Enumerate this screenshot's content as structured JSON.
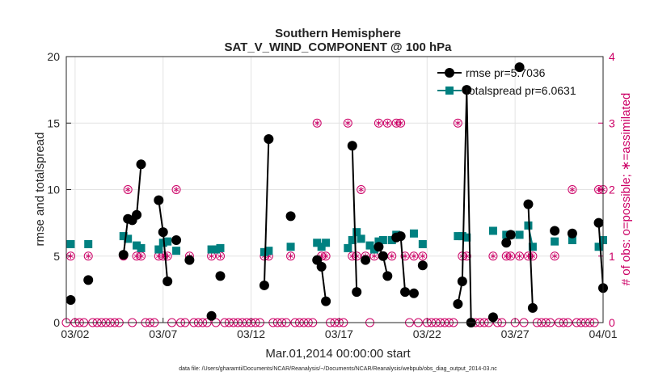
{
  "chart_data": {
    "type": "line",
    "title": "Southern Hemisphere",
    "subtitle": "SAT_V_WIND_COMPONENT @ 100 hPa",
    "xlabel": "Mar.01,2014 00:00:00 start",
    "ylabel": "rmse and totalspread",
    "y2label": "# of obs: o=possible; ∗=assimilated",
    "xlim": [
      0.5,
      31.0
    ],
    "ylim": [
      0,
      20
    ],
    "y2lim": [
      0,
      4
    ],
    "x_ticks": [
      1,
      6,
      11,
      16,
      21,
      26,
      31
    ],
    "x_tick_labels": [
      "03/02",
      "03/07",
      "03/12",
      "03/17",
      "03/22",
      "03/27",
      "04/01"
    ],
    "y_ticks": [
      0,
      5,
      10,
      15,
      20
    ],
    "y_tick_labels": [
      "0",
      "5",
      "10",
      "15",
      "20"
    ],
    "y2_ticks": [
      0,
      1,
      2,
      3,
      4
    ],
    "y2_tick_labels": [
      "0",
      "1",
      "2",
      "3",
      "4"
    ],
    "grid": true,
    "legend_position": "top-right",
    "footnote": "data file: /Users/gharamti/Documents/NCAR/Reanalysis/~/Documents/NCAR/Reanalysis/webpub/obs_diag_output_2014-03.nc",
    "series": [
      {
        "name": "rmse pr=5.7036",
        "color": "#000000",
        "marker": "circle",
        "axis": "left",
        "segments": [
          [
            [
              0.75,
              1.7
            ]
          ],
          [
            [
              1.75,
              3.2
            ]
          ],
          [
            [
              3.75,
              5.1
            ],
            [
              4.0,
              7.8
            ],
            [
              4.25,
              7.7
            ],
            [
              4.5,
              8.1
            ],
            [
              4.75,
              11.9
            ]
          ],
          [
            [
              5.75,
              9.2
            ],
            [
              6.0,
              6.8
            ],
            [
              6.25,
              3.1
            ]
          ],
          [
            [
              6.75,
              6.2
            ]
          ],
          [
            [
              7.5,
              4.7
            ]
          ],
          [
            [
              8.75,
              0.5
            ]
          ],
          [
            [
              9.25,
              3.5
            ]
          ],
          [
            [
              11.75,
              2.8
            ],
            [
              12.0,
              13.8
            ]
          ],
          [
            [
              13.25,
              8.0
            ]
          ],
          [
            [
              14.75,
              4.7
            ],
            [
              15.0,
              4.2
            ],
            [
              15.25,
              1.6
            ]
          ],
          [
            [
              16.75,
              13.3
            ],
            [
              17.0,
              2.3
            ]
          ],
          [
            [
              17.5,
              4.7
            ]
          ],
          [
            [
              18.25,
              5.7
            ],
            [
              18.5,
              5.0
            ],
            [
              18.75,
              3.5
            ]
          ],
          [
            [
              19.25,
              6.4
            ],
            [
              19.5,
              6.5
            ],
            [
              19.75,
              2.3
            ]
          ],
          [
            [
              20.25,
              2.2
            ]
          ],
          [
            [
              20.75,
              4.3
            ]
          ],
          [
            [
              22.75,
              1.4
            ],
            [
              23.0,
              3.1
            ],
            [
              23.25,
              17.5
            ],
            [
              23.5,
              0.0
            ]
          ],
          [
            [
              24.75,
              0.4
            ]
          ],
          [
            [
              25.5,
              6.0
            ],
            [
              25.75,
              6.6
            ]
          ],
          [
            [
              26.25,
              19.2
            ]
          ],
          [
            [
              26.75,
              8.9
            ],
            [
              27.0,
              1.1
            ]
          ],
          [
            [
              28.25,
              6.9
            ]
          ],
          [
            [
              29.25,
              6.7
            ]
          ],
          [
            [
              30.75,
              7.5
            ],
            [
              31.0,
              2.6
            ]
          ]
        ]
      },
      {
        "name": "totalspread pr=6.0631",
        "color": "#008080",
        "marker": "square",
        "axis": "left",
        "segments": [
          [
            [
              0.75,
              5.9
            ]
          ],
          [
            [
              1.75,
              5.9
            ]
          ],
          [
            [
              3.75,
              6.5
            ],
            [
              4.0,
              6.3
            ]
          ],
          [
            [
              4.5,
              5.8
            ],
            [
              4.75,
              5.6
            ]
          ],
          [
            [
              5.75,
              5.5
            ],
            [
              6.0,
              6.0
            ],
            [
              6.25,
              6.1
            ]
          ],
          [
            [
              6.75,
              5.4
            ]
          ],
          [
            [
              8.75,
              5.5
            ],
            [
              9.0,
              5.5
            ],
            [
              9.25,
              5.6
            ]
          ],
          [
            [
              11.75,
              5.3
            ],
            [
              12.0,
              5.4
            ]
          ],
          [
            [
              13.25,
              5.7
            ]
          ],
          [
            [
              14.75,
              6.0
            ],
            [
              15.0,
              5.7
            ],
            [
              15.25,
              6.0
            ]
          ],
          [
            [
              16.5,
              5.6
            ],
            [
              16.75,
              6.2
            ],
            [
              17.0,
              6.8
            ],
            [
              17.25,
              6.3
            ]
          ],
          [
            [
              17.75,
              5.8
            ],
            [
              18.0,
              5.5
            ],
            [
              18.25,
              6.1
            ],
            [
              18.5,
              6.2
            ]
          ],
          [
            [
              19.0,
              6.2
            ],
            [
              19.25,
              6.6
            ]
          ],
          [
            [
              20.25,
              6.7
            ]
          ],
          [
            [
              20.75,
              5.9
            ]
          ],
          [
            [
              22.75,
              6.5
            ],
            [
              23.0,
              6.5
            ],
            [
              23.25,
              6.4
            ]
          ],
          [
            [
              24.75,
              6.9
            ]
          ],
          [
            [
              25.5,
              6.6
            ],
            [
              25.75,
              6.6
            ]
          ],
          [
            [
              26.25,
              6.6
            ]
          ],
          [
            [
              26.75,
              7.3
            ],
            [
              27.0,
              5.7
            ]
          ],
          [
            [
              28.25,
              6.1
            ]
          ],
          [
            [
              29.25,
              6.2
            ]
          ],
          [
            [
              30.75,
              5.7
            ],
            [
              31.0,
              6.2
            ]
          ]
        ]
      },
      {
        "name": "# of obs possible / assimilated",
        "color": "#cc0066",
        "marker": "circle-asterisk",
        "axis": "right",
        "points": [
          [
            0.5,
            0
          ],
          [
            0.75,
            1
          ],
          [
            1.0,
            0
          ],
          [
            1.25,
            0
          ],
          [
            1.5,
            0
          ],
          [
            1.75,
            1
          ],
          [
            2.0,
            0
          ],
          [
            2.25,
            0
          ],
          [
            2.5,
            0
          ],
          [
            2.75,
            0
          ],
          [
            3.0,
            0
          ],
          [
            3.25,
            0
          ],
          [
            3.5,
            0
          ],
          [
            3.75,
            1
          ],
          [
            4.0,
            2
          ],
          [
            4.25,
            0
          ],
          [
            4.5,
            1
          ],
          [
            4.75,
            1
          ],
          [
            5.0,
            0
          ],
          [
            5.25,
            0
          ],
          [
            5.5,
            0
          ],
          [
            5.75,
            1
          ],
          [
            6.0,
            1
          ],
          [
            6.25,
            1
          ],
          [
            6.5,
            0
          ],
          [
            6.75,
            2
          ],
          [
            7.0,
            0
          ],
          [
            7.25,
            0
          ],
          [
            7.5,
            1
          ],
          [
            7.75,
            0
          ],
          [
            8.0,
            0
          ],
          [
            8.25,
            0
          ],
          [
            8.5,
            0
          ],
          [
            8.75,
            1
          ],
          [
            9.0,
            0
          ],
          [
            9.25,
            1
          ],
          [
            9.5,
            0
          ],
          [
            9.75,
            0
          ],
          [
            10.0,
            0
          ],
          [
            10.25,
            0
          ],
          [
            10.5,
            0
          ],
          [
            10.75,
            0
          ],
          [
            11.0,
            0
          ],
          [
            11.25,
            0
          ],
          [
            11.5,
            0
          ],
          [
            11.75,
            1
          ],
          [
            12.0,
            1
          ],
          [
            12.25,
            0
          ],
          [
            12.5,
            0
          ],
          [
            12.75,
            0
          ],
          [
            13.0,
            0
          ],
          [
            13.25,
            1
          ],
          [
            13.5,
            0
          ],
          [
            13.75,
            0
          ],
          [
            14.0,
            0
          ],
          [
            14.25,
            0
          ],
          [
            14.5,
            0
          ],
          [
            14.75,
            3
          ],
          [
            15.0,
            1
          ],
          [
            15.25,
            1
          ],
          [
            15.5,
            0
          ],
          [
            15.75,
            0
          ],
          [
            16.0,
            0
          ],
          [
            16.25,
            0
          ],
          [
            16.5,
            3
          ],
          [
            16.75,
            1
          ],
          [
            17.0,
            1
          ],
          [
            17.25,
            2
          ],
          [
            17.5,
            1
          ],
          [
            17.75,
            0
          ],
          [
            18.0,
            1
          ],
          [
            18.25,
            3
          ],
          [
            18.5,
            1
          ],
          [
            18.75,
            3
          ],
          [
            19.0,
            1
          ],
          [
            19.25,
            3
          ],
          [
            19.5,
            3
          ],
          [
            19.75,
            1
          ],
          [
            20.0,
            0
          ],
          [
            20.25,
            1
          ],
          [
            20.5,
            0
          ],
          [
            20.75,
            1
          ],
          [
            21.0,
            0
          ],
          [
            21.25,
            0
          ],
          [
            21.5,
            0
          ],
          [
            21.75,
            0
          ],
          [
            22.0,
            0
          ],
          [
            22.25,
            0
          ],
          [
            22.5,
            0
          ],
          [
            22.75,
            3
          ],
          [
            23.0,
            1
          ],
          [
            23.25,
            1
          ],
          [
            23.5,
            0
          ],
          [
            23.75,
            0
          ],
          [
            24.0,
            0
          ],
          [
            24.25,
            0
          ],
          [
            24.5,
            0
          ],
          [
            24.75,
            1
          ],
          [
            25.0,
            0
          ],
          [
            25.25,
            0
          ],
          [
            25.5,
            1
          ],
          [
            25.75,
            1
          ],
          [
            26.0,
            0
          ],
          [
            26.25,
            1
          ],
          [
            26.5,
            0
          ],
          [
            26.75,
            1
          ],
          [
            27.0,
            1
          ],
          [
            27.25,
            0
          ],
          [
            27.5,
            0
          ],
          [
            27.75,
            0
          ],
          [
            28.0,
            0
          ],
          [
            28.25,
            1
          ],
          [
            28.5,
            0
          ],
          [
            28.75,
            0
          ],
          [
            29.0,
            0
          ],
          [
            29.25,
            2
          ],
          [
            29.5,
            0
          ],
          [
            29.75,
            0
          ],
          [
            30.0,
            0
          ],
          [
            30.25,
            0
          ],
          [
            30.5,
            0
          ],
          [
            30.75,
            2
          ],
          [
            31.0,
            2
          ]
        ]
      }
    ]
  }
}
